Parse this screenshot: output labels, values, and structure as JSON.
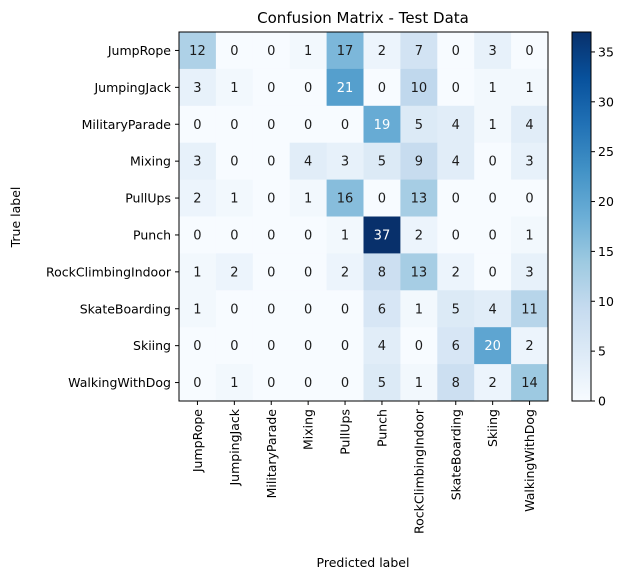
{
  "chart_data": {
    "type": "heatmap",
    "title": "Confusion Matrix - Test Data",
    "xlabel": "Predicted label",
    "ylabel": "True label",
    "row_labels": [
      "JumpRope",
      "JumpingJack",
      "MilitaryParade",
      "Mixing",
      "PullUps",
      "Punch",
      "RockClimbingIndoor",
      "SkateBoarding",
      "Skiing",
      "WalkingWithDog"
    ],
    "col_labels": [
      "JumpRope",
      "JumpingJack",
      "MilitaryParade",
      "Mixing",
      "PullUps",
      "Punch",
      "RockClimbingIndoor",
      "SkateBoarding",
      "Skiing",
      "WalkingWithDog"
    ],
    "values": [
      [
        12,
        0,
        0,
        1,
        17,
        2,
        7,
        0,
        3,
        0
      ],
      [
        3,
        1,
        0,
        0,
        21,
        0,
        10,
        0,
        1,
        1
      ],
      [
        0,
        0,
        0,
        0,
        0,
        19,
        5,
        4,
        1,
        4
      ],
      [
        3,
        0,
        0,
        4,
        3,
        5,
        9,
        4,
        0,
        3
      ],
      [
        2,
        1,
        0,
        1,
        16,
        0,
        13,
        0,
        0,
        0
      ],
      [
        0,
        0,
        0,
        0,
        1,
        37,
        2,
        0,
        0,
        1
      ],
      [
        1,
        2,
        0,
        0,
        2,
        8,
        13,
        2,
        0,
        3
      ],
      [
        1,
        0,
        0,
        0,
        0,
        6,
        1,
        5,
        4,
        11
      ],
      [
        0,
        0,
        0,
        0,
        0,
        4,
        0,
        6,
        20,
        2
      ],
      [
        0,
        1,
        0,
        0,
        0,
        5,
        1,
        8,
        2,
        14
      ]
    ],
    "colormap": "Blues",
    "vmin": 0,
    "vmax": 37,
    "colorbar_ticks": [
      0,
      5,
      10,
      15,
      20,
      25,
      30,
      35
    ],
    "grid": false
  }
}
